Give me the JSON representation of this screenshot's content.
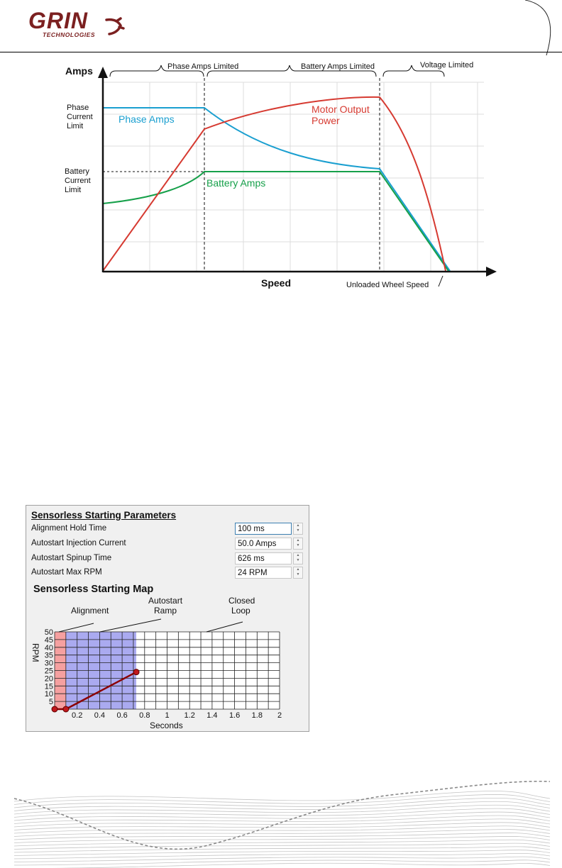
{
  "header": {
    "logo_text": "GRIN",
    "logo_sub": "TECHNOLOGIES"
  },
  "chart_data": [
    {
      "type": "line",
      "xlabel": "Speed",
      "ylabel": "Amps",
      "x_marker": "Unloaded Wheel Speed",
      "y_markers": [
        "Phase Current Limit",
        "Battery Current Limit"
      ],
      "regions": [
        "Phase Amps Limited",
        "Battery Amps Limited",
        "Voltage Limited"
      ],
      "series": [
        {
          "name": "Phase Amps",
          "color": "#1a9fd0"
        },
        {
          "name": "Battery Amps",
          "color": "#16a04a"
        },
        {
          "name": "Motor Output Power",
          "color": "#d63a31"
        }
      ],
      "grid": true
    },
    {
      "type": "line",
      "title": "Sensorless Starting Map",
      "xlabel": "Seconds",
      "ylabel": "RPM",
      "xlim": [
        0,
        2
      ],
      "ylim": [
        0,
        50
      ],
      "x_ticks": [
        "0.2",
        "0.4",
        "0.6",
        "0.8",
        "1",
        "1.2",
        "1.4",
        "1.6",
        "1.8",
        "2"
      ],
      "y_ticks": [
        "50",
        "45",
        "40",
        "35",
        "30",
        "25",
        "20",
        "15",
        "10",
        "5"
      ],
      "zones": [
        {
          "label": "Alignment",
          "from": 0,
          "to": 0.1,
          "color": "#f5a0a0"
        },
        {
          "label": "Autostart Ramp",
          "from": 0.1,
          "to": 0.726,
          "color": "#aaaaf0"
        },
        {
          "label": "Closed Loop",
          "from": 0.726,
          "to": 2,
          "color": "#ffffff"
        }
      ],
      "series": [
        {
          "name": "",
          "x": [
            0,
            0.1,
            0.726
          ],
          "y": [
            0,
            0,
            24
          ],
          "color": "#8b0000"
        }
      ],
      "grid": true
    }
  ],
  "panel": {
    "title": "Sensorless Starting Parameters",
    "params": [
      {
        "label": "Alignment Hold Time",
        "value": "100 ms"
      },
      {
        "label": "Autostart Injection Current",
        "value": "50.0 Amps"
      },
      {
        "label": "Autostart Spinup Time",
        "value": "626 ms"
      },
      {
        "label": "Autostart Max RPM",
        "value": "24 RPM"
      }
    ],
    "map_title": "Sensorless Starting Map",
    "labels": {
      "alignment": "Alignment",
      "ramp_line1": "Autostart",
      "ramp_line2": "Ramp",
      "closed_line1": "Closed",
      "closed_line2": "Loop"
    }
  },
  "colors": {
    "accent": "#8b2320"
  }
}
